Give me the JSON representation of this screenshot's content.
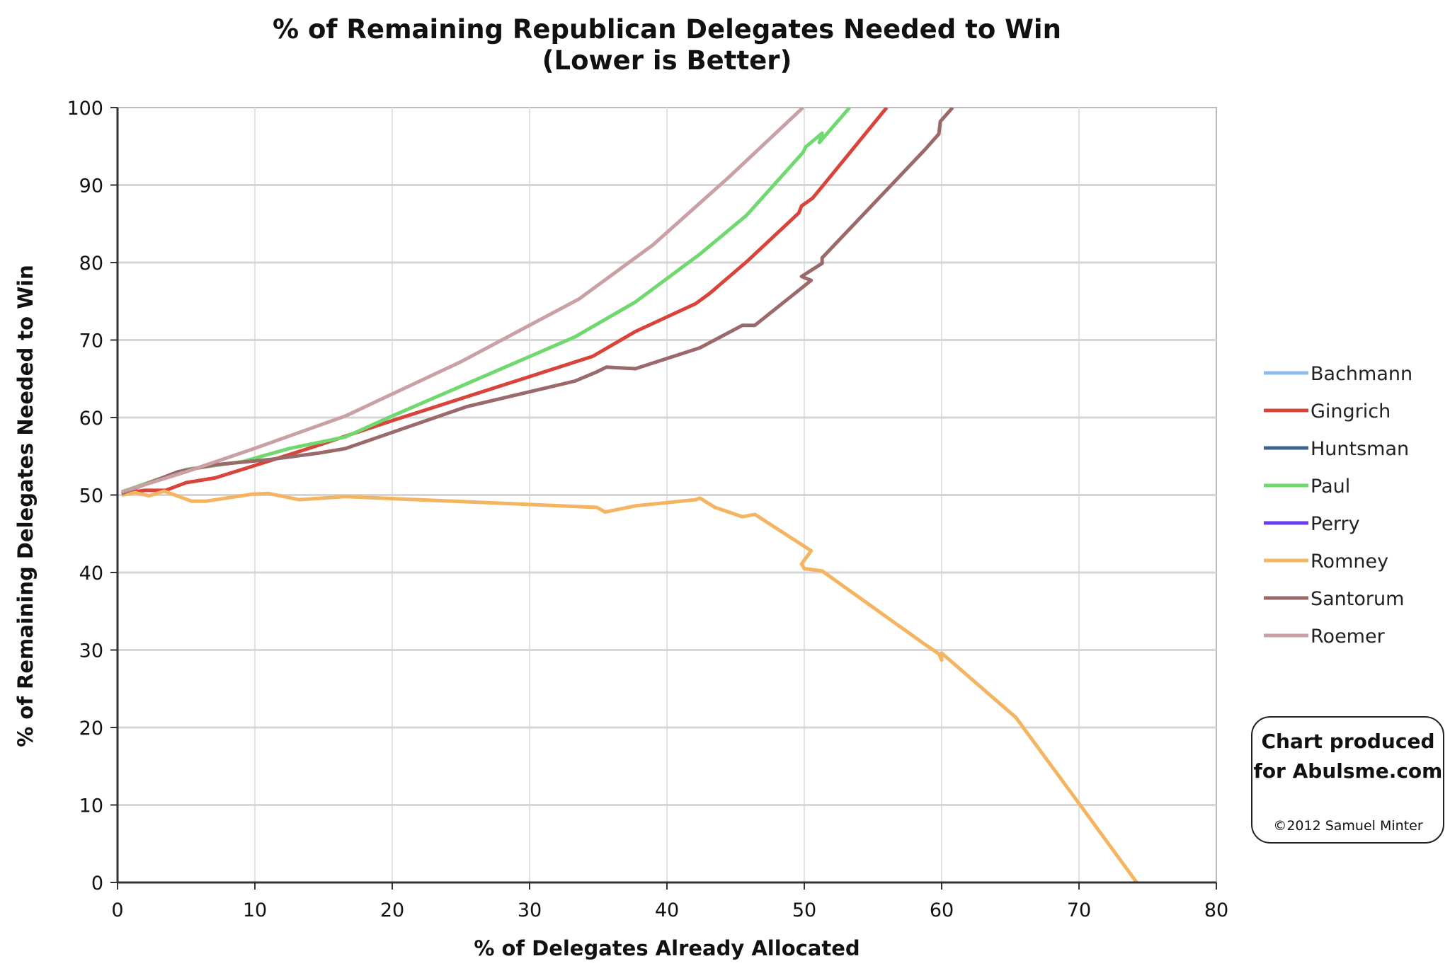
{
  "chart_data": {
    "type": "line",
    "title": "% of Remaining Republican Delegates Needed to Win",
    "subtitle": "(Lower is Better)",
    "xlabel": "% of Delegates Already Allocated",
    "ylabel": "% of Remaining Delegates Needed to Win",
    "xlim": [
      0,
      80
    ],
    "ylim": [
      0,
      100
    ],
    "xticks": [
      "0",
      "10",
      "20",
      "30",
      "40",
      "50",
      "60",
      "70",
      "80"
    ],
    "yticks": [
      "0",
      "10",
      "20",
      "30",
      "40",
      "50",
      "60",
      "70",
      "80",
      "90",
      "100"
    ],
    "grid": true,
    "legend_placement": "right",
    "series": [
      {
        "name": "Bachmann",
        "color": "#8cbcf0",
        "points": []
      },
      {
        "name": "Gingrich",
        "color": "#d9443a",
        "points": [
          [
            0.3,
            50.2
          ],
          [
            2,
            50.6
          ],
          [
            3.5,
            50.6
          ],
          [
            5,
            51.6
          ],
          [
            7.1,
            52.2
          ],
          [
            9.8,
            53.7
          ],
          [
            13.9,
            56
          ],
          [
            20,
            59.6
          ],
          [
            34.6,
            67.9
          ],
          [
            37.7,
            71.1
          ],
          [
            42.1,
            74.7
          ],
          [
            43.1,
            76
          ],
          [
            45.8,
            80.1
          ],
          [
            49.6,
            86.4
          ],
          [
            49.8,
            87.3
          ],
          [
            50.6,
            88.3
          ],
          [
            51.3,
            89.8
          ],
          [
            56,
            100
          ]
        ]
      },
      {
        "name": "Huntsman",
        "color": "#3e6591",
        "points": []
      },
      {
        "name": "Paul",
        "color": "#6fd86f",
        "points": [
          [
            0.3,
            50.4
          ],
          [
            5,
            53.3
          ],
          [
            9.1,
            54.3
          ],
          [
            12.5,
            56
          ],
          [
            16.6,
            57.5
          ],
          [
            20,
            60.2
          ],
          [
            33.3,
            70.4
          ],
          [
            37.7,
            74.9
          ],
          [
            42.4,
            81.1
          ],
          [
            45.8,
            86.1
          ],
          [
            49.9,
            94.2
          ],
          [
            50.1,
            94.9
          ],
          [
            51.3,
            96.7
          ],
          [
            51.1,
            95.5
          ],
          [
            53.3,
            100
          ]
        ]
      },
      {
        "name": "Perry",
        "color": "#6a3cf0",
        "points": []
      },
      {
        "name": "Romney",
        "color": "#f5b461",
        "points": [
          [
            0.3,
            50
          ],
          [
            1.3,
            50.3
          ],
          [
            2.3,
            49.9
          ],
          [
            3.4,
            50.5
          ],
          [
            5.4,
            49.2
          ],
          [
            6.4,
            49.2
          ],
          [
            9.8,
            50.1
          ],
          [
            11,
            50.2
          ],
          [
            13.2,
            49.4
          ],
          [
            16.6,
            49.8
          ],
          [
            34.9,
            48.4
          ],
          [
            35.5,
            47.8
          ],
          [
            37.7,
            48.6
          ],
          [
            42.1,
            49.4
          ],
          [
            42.4,
            49.6
          ],
          [
            43.5,
            48.4
          ],
          [
            45.5,
            47.2
          ],
          [
            46.4,
            47.5
          ],
          [
            50.5,
            42.8
          ],
          [
            49.8,
            41.1
          ],
          [
            50,
            40.5
          ],
          [
            51.3,
            40.2
          ],
          [
            58.8,
            30.7
          ],
          [
            59.8,
            29.5
          ],
          [
            60,
            28.7
          ],
          [
            60,
            29.6
          ],
          [
            65.4,
            21.3
          ],
          [
            70,
            10.2
          ],
          [
            74.2,
            0
          ]
        ]
      },
      {
        "name": "Santorum",
        "color": "#9a6a6a",
        "points": [
          [
            0.3,
            50.2
          ],
          [
            4.4,
            53
          ],
          [
            7.1,
            53.9
          ],
          [
            11.2,
            54.6
          ],
          [
            14.6,
            55.4
          ],
          [
            16.6,
            56
          ],
          [
            25.4,
            61.4
          ],
          [
            33.3,
            64.7
          ],
          [
            34.9,
            65.9
          ],
          [
            35.6,
            66.5
          ],
          [
            37.7,
            66.3
          ],
          [
            42.4,
            69
          ],
          [
            45.5,
            71.9
          ],
          [
            46.4,
            71.9
          ],
          [
            50.5,
            77.7
          ],
          [
            49.8,
            78.2
          ],
          [
            51.3,
            79.9
          ],
          [
            51.3,
            80.6
          ],
          [
            58.8,
            94.6
          ],
          [
            59.8,
            96.6
          ],
          [
            59.9,
            98.2
          ],
          [
            60.8,
            100
          ]
        ]
      },
      {
        "name": "Roemer",
        "color": "#c9a0a4",
        "points": [
          [
            0.3,
            50.4
          ],
          [
            5,
            53
          ],
          [
            9.8,
            55.9
          ],
          [
            16.6,
            60.2
          ],
          [
            25,
            67.2
          ],
          [
            33.6,
            75.3
          ],
          [
            39,
            82.3
          ],
          [
            44.5,
            91
          ],
          [
            49.9,
            100
          ]
        ]
      }
    ]
  },
  "credit": {
    "line1": "Chart produced",
    "line2": "for Abulsme.com",
    "copyright": "©2012 Samuel Minter"
  }
}
